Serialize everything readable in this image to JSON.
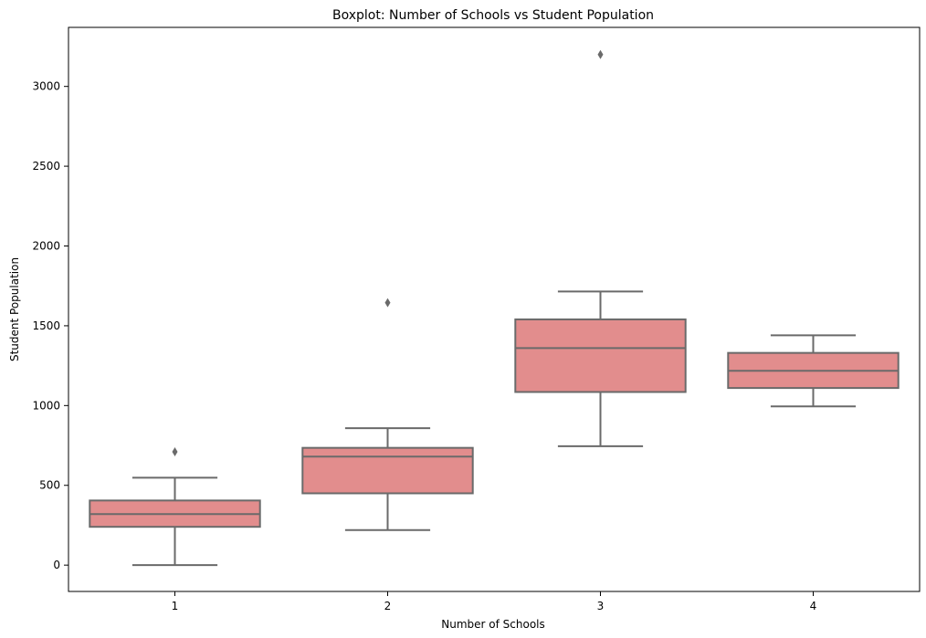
{
  "chart_data": {
    "type": "boxplot",
    "title": "Boxplot: Number of Schools vs Student Population",
    "xlabel": "Number of Schools",
    "ylabel": "Student Population",
    "ylim": [
      -165,
      3370
    ],
    "yticks": [
      0,
      500,
      1000,
      1500,
      2000,
      2500,
      3000
    ],
    "grid": false,
    "categories": [
      "1",
      "2",
      "3",
      "4"
    ],
    "box_color": "#e28d8d",
    "line_color": "#6a6a6a",
    "boxes": [
      {
        "category": "1",
        "whisker_low": 0,
        "q1": 240,
        "median": 320,
        "q3": 405,
        "whisker_high": 548,
        "outliers": [
          710
        ]
      },
      {
        "category": "2",
        "whisker_low": 220,
        "q1": 450,
        "median": 680,
        "q3": 735,
        "whisker_high": 858,
        "outliers": [
          1645
        ]
      },
      {
        "category": "3",
        "whisker_low": 745,
        "q1": 1085,
        "median": 1360,
        "q3": 1540,
        "whisker_high": 1715,
        "outliers": [
          3200
        ]
      },
      {
        "category": "4",
        "whisker_low": 995,
        "q1": 1110,
        "median": 1218,
        "q3": 1330,
        "whisker_high": 1440,
        "outliers": []
      }
    ]
  }
}
